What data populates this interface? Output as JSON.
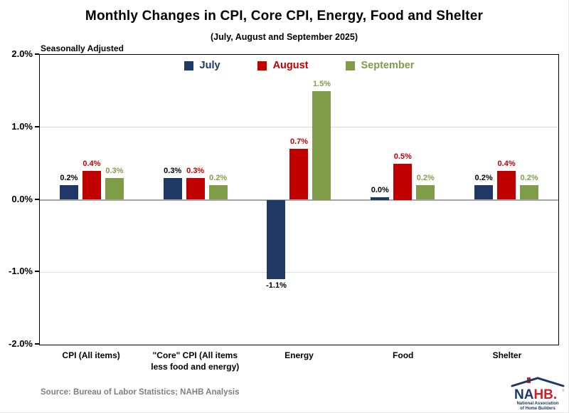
{
  "header": {
    "title": "Monthly Changes in CPI, Core CPI, Energy, Food and Shelter",
    "subtitle": "(July, August and September 2025)",
    "note": "Seasonally Adjusted"
  },
  "footer": {
    "source": "Source: Bureau of Labor Statistics; NAHB Analysis"
  },
  "logo": {
    "text_na": "NA",
    "text_hb": "HB.",
    "org_line1": "National Association",
    "org_line2": "of Home Builders"
  },
  "colors": {
    "july": "#1f3864",
    "august": "#c00000",
    "september": "#7f9c49",
    "july_label": "#000000",
    "grid": "#d9d9d9",
    "zero_line": "#a6a6a6",
    "axis": "#000000",
    "source_text": "#7f7f7f"
  },
  "chart_data": {
    "type": "bar",
    "categories": [
      "CPI (All items)",
      "\"Core\" CPI (All items less food and energy)",
      "Energy",
      "Food",
      "Shelter"
    ],
    "series": [
      {
        "name": "July",
        "color": "#1f3864",
        "label_color": "#000000",
        "values": [
          0.2,
          0.3,
          -1.1,
          0.0,
          0.2
        ],
        "labels": [
          "0.2%",
          "0.3%",
          "-1.1%",
          "0.0%",
          "0.2%"
        ]
      },
      {
        "name": "August",
        "color": "#c00000",
        "label_color": "#c00000",
        "values": [
          0.4,
          0.3,
          0.7,
          0.5,
          0.4
        ],
        "labels": [
          "0.4%",
          "0.3%",
          "0.7%",
          "0.5%",
          "0.4%"
        ]
      },
      {
        "name": "September",
        "color": "#7f9c49",
        "label_color": "#7f9c49",
        "values": [
          0.3,
          0.2,
          1.5,
          0.2,
          0.2
        ],
        "labels": [
          "0.3%",
          "0.2%",
          "1.5%",
          "0.2%",
          "0.2%"
        ]
      }
    ],
    "ylim": [
      -2,
      2
    ],
    "y_ticks": [
      {
        "label": "2.0%",
        "value": 2
      },
      {
        "label": "1.0%",
        "value": 1
      },
      {
        "label": "0.0%",
        "value": 0
      },
      {
        "label": "-1.0%",
        "value": -1
      },
      {
        "label": "-2.0%",
        "value": -2
      }
    ],
    "legend_position": "top-center",
    "grid": "horizontal",
    "units": "percent"
  }
}
